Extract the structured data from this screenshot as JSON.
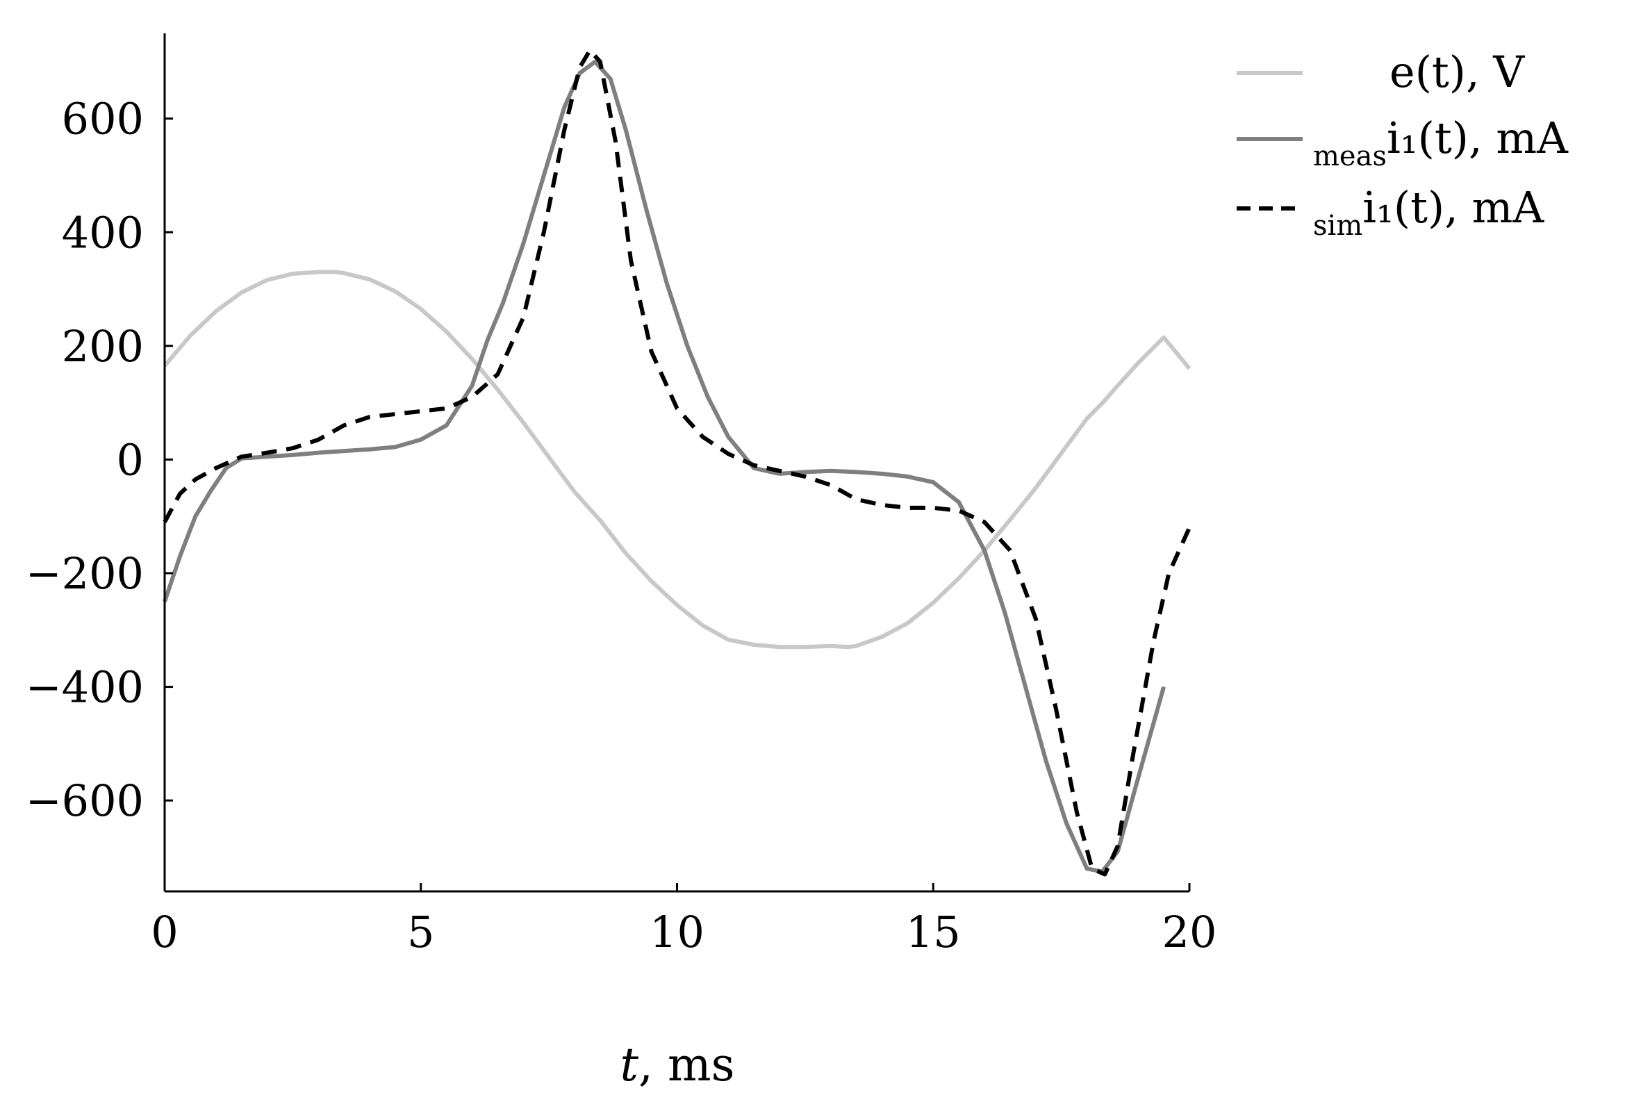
{
  "chart_data": {
    "type": "line",
    "xlabel_var": "t",
    "xlabel_unit": ", ms",
    "xlim": [
      0,
      20
    ],
    "ylim": [
      -760,
      750
    ],
    "x_ticks": [
      0,
      5,
      10,
      15,
      20
    ],
    "y_ticks": [
      -600,
      -400,
      -200,
      0,
      200,
      400,
      600
    ],
    "x_tick_labels": [
      "0",
      "5",
      "10",
      "15",
      "20"
    ],
    "y_tick_labels": [
      "−600",
      "−400",
      "−200",
      "0",
      "200",
      "400",
      "600"
    ],
    "grid": false,
    "legend_position": "top-right, outside plot",
    "series": [
      {
        "name": "e(t), V",
        "legend_sub": "",
        "legend_main": "e(t), V",
        "color": "#c8c8c8",
        "dash": "",
        "x": [
          0,
          0.5,
          1,
          1.5,
          2,
          2.5,
          3,
          3.33,
          3.5,
          4,
          4.5,
          5,
          5.5,
          6,
          6.5,
          7,
          7.5,
          8,
          8.33,
          8.5,
          9,
          9.5,
          10,
          10.5,
          11,
          11.5,
          12,
          12.5,
          13,
          13.33,
          13.5,
          14,
          14.5,
          15,
          15.5,
          16,
          16.5,
          17,
          17.5,
          18,
          18.33,
          18.5,
          19,
          19.5,
          20
        ],
        "y": [
          165,
          218,
          261,
          294,
          316,
          327,
          330,
          330,
          328,
          317,
          296,
          265,
          225,
          177,
          123,
          65,
          4,
          -57,
          -90,
          -107,
          -165,
          -214,
          -256,
          -292,
          -317,
          -326,
          -330,
          -330,
          -328,
          -330,
          -328,
          -312,
          -288,
          -252,
          -209,
          -160,
          -106,
          -50,
          11,
          72,
          102,
          120,
          170,
          215,
          160
        ]
      },
      {
        "name": "meas i1(t), mA",
        "legend_sub": "meas",
        "legend_main": "i₁(t), mA",
        "color": "#7f7f7f",
        "dash": "",
        "x": [
          0,
          0.3,
          0.6,
          0.9,
          1.2,
          1.5,
          2,
          2.5,
          3,
          3.5,
          4,
          4.5,
          5,
          5.5,
          6,
          6.3,
          6.6,
          7,
          7.4,
          7.8,
          8.1,
          8.4,
          8.7,
          9,
          9.4,
          9.8,
          10.2,
          10.6,
          11,
          11.5,
          12,
          12.5,
          13,
          13.5,
          14,
          14.5,
          15,
          15.5,
          16,
          16.4,
          16.8,
          17.2,
          17.6,
          18,
          18.3,
          18.6,
          19,
          19.5
        ],
        "y": [
          -250,
          -170,
          -100,
          -55,
          -15,
          2,
          5,
          8,
          12,
          15,
          18,
          22,
          35,
          60,
          130,
          210,
          275,
          380,
          500,
          620,
          680,
          700,
          670,
          580,
          440,
          310,
          200,
          110,
          40,
          -15,
          -25,
          -22,
          -20,
          -22,
          -25,
          -30,
          -40,
          -75,
          -160,
          -270,
          -400,
          -530,
          -640,
          -720,
          -725,
          -690,
          -560,
          -400
        ]
      },
      {
        "name": "sim i1(t), mA",
        "legend_sub": "sim",
        "legend_main": "i₁(t), mA",
        "color": "#000000",
        "dash": "22,14",
        "x": [
          0,
          0.3,
          0.6,
          1,
          1.5,
          2,
          2.5,
          3,
          3.5,
          4,
          4.5,
          5,
          5.5,
          6,
          6.5,
          7,
          7.4,
          7.8,
          8.1,
          8.3,
          8.5,
          8.8,
          9.1,
          9.5,
          10,
          10.5,
          11,
          11.5,
          12,
          12.5,
          13,
          13.5,
          14,
          14.5,
          15,
          15.5,
          16,
          16.5,
          17,
          17.4,
          17.8,
          18.1,
          18.35,
          18.6,
          18.9,
          19.3,
          19.6,
          20
        ],
        "y": [
          -110,
          -60,
          -35,
          -15,
          5,
          12,
          20,
          35,
          60,
          75,
          80,
          85,
          90,
          110,
          150,
          250,
          400,
          580,
          690,
          720,
          700,
          560,
          350,
          190,
          90,
          40,
          10,
          -10,
          -20,
          -30,
          -45,
          -70,
          -80,
          -85,
          -85,
          -90,
          -110,
          -160,
          -280,
          -440,
          -620,
          -720,
          -730,
          -680,
          -520,
          -320,
          -200,
          -120
        ]
      }
    ]
  }
}
